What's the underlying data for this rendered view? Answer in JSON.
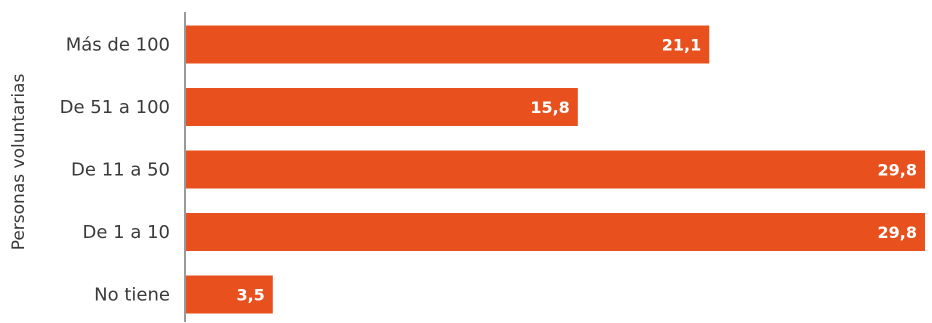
{
  "chart_data": {
    "type": "bar",
    "orientation": "horizontal",
    "ylabel": "Personas voluntarias",
    "categories": [
      "Más de 100",
      "De 51 a 100",
      "De 11 a 50",
      "De 1 a 10",
      "No tiene"
    ],
    "values": [
      21.1,
      15.8,
      29.8,
      29.8,
      3.5
    ],
    "value_labels": [
      "21,1",
      "15,8",
      "29,8",
      "29,8",
      "3,5"
    ],
    "xlim": [
      0,
      29.8
    ],
    "grid": false,
    "legend": "none",
    "colors": {
      "bar": "#e8501e",
      "axis": "#333333",
      "text": "#3a3a3a",
      "value_text": "#ffffff"
    }
  }
}
